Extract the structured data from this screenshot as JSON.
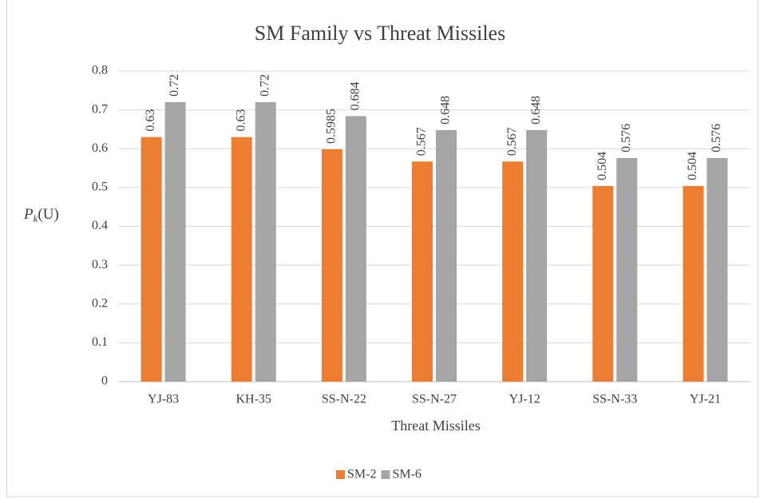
{
  "chart_data": {
    "type": "bar",
    "title": "SM Family vs Threat Missiles",
    "x_label": "Threat Missiles",
    "y_label": [
      "P",
      "k",
      "(U)"
    ],
    "categories": [
      "YJ-83",
      "KH-35",
      "SS-N-22",
      "SS-N-27",
      "YJ-12",
      "SS-N-33",
      "YJ-21"
    ],
    "series": [
      {
        "name": "SM-2",
        "color": "#ed7d31",
        "values": [
          0.63,
          0.63,
          0.5985,
          0.567,
          0.567,
          0.504,
          0.504
        ]
      },
      {
        "name": "SM-6",
        "color": "#a5a5a5",
        "values": [
          0.72,
          0.72,
          0.684,
          0.648,
          0.648,
          0.576,
          0.576
        ]
      }
    ],
    "ylim": [
      0,
      0.8
    ],
    "yticks": [
      0,
      0.1,
      0.2,
      0.3,
      0.4,
      0.5,
      0.6,
      0.7,
      0.8
    ],
    "grid": true,
    "legend": "bottom"
  }
}
